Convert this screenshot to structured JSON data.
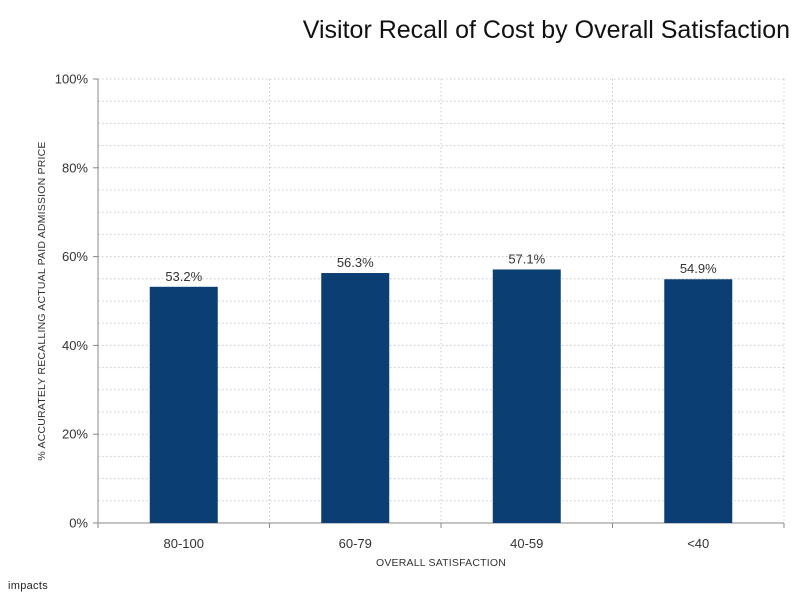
{
  "chart_data": {
    "type": "bar",
    "title": "Visitor Recall of Cost by Overall Satisfaction",
    "xlabel": "OVERALL SATISFACTION",
    "ylabel": "% ACCURATELY RECALLING ACTUAL PAID ADMISSION PRICE",
    "categories": [
      "80-100",
      "60-79",
      "40-59",
      "<40"
    ],
    "values": [
      53.2,
      56.3,
      57.1,
      54.9
    ],
    "data_labels": [
      "53.2%",
      "56.3%",
      "57.1%",
      "54.9%"
    ],
    "ylim": [
      0,
      100
    ],
    "y_ticks": [
      0,
      20,
      40,
      60,
      80,
      100
    ],
    "y_tick_labels": [
      "0%",
      "20%",
      "40%",
      "60%",
      "80%",
      "100%"
    ],
    "grid": true,
    "bar_color": "#0b3f73"
  },
  "logo_text": "impacts"
}
